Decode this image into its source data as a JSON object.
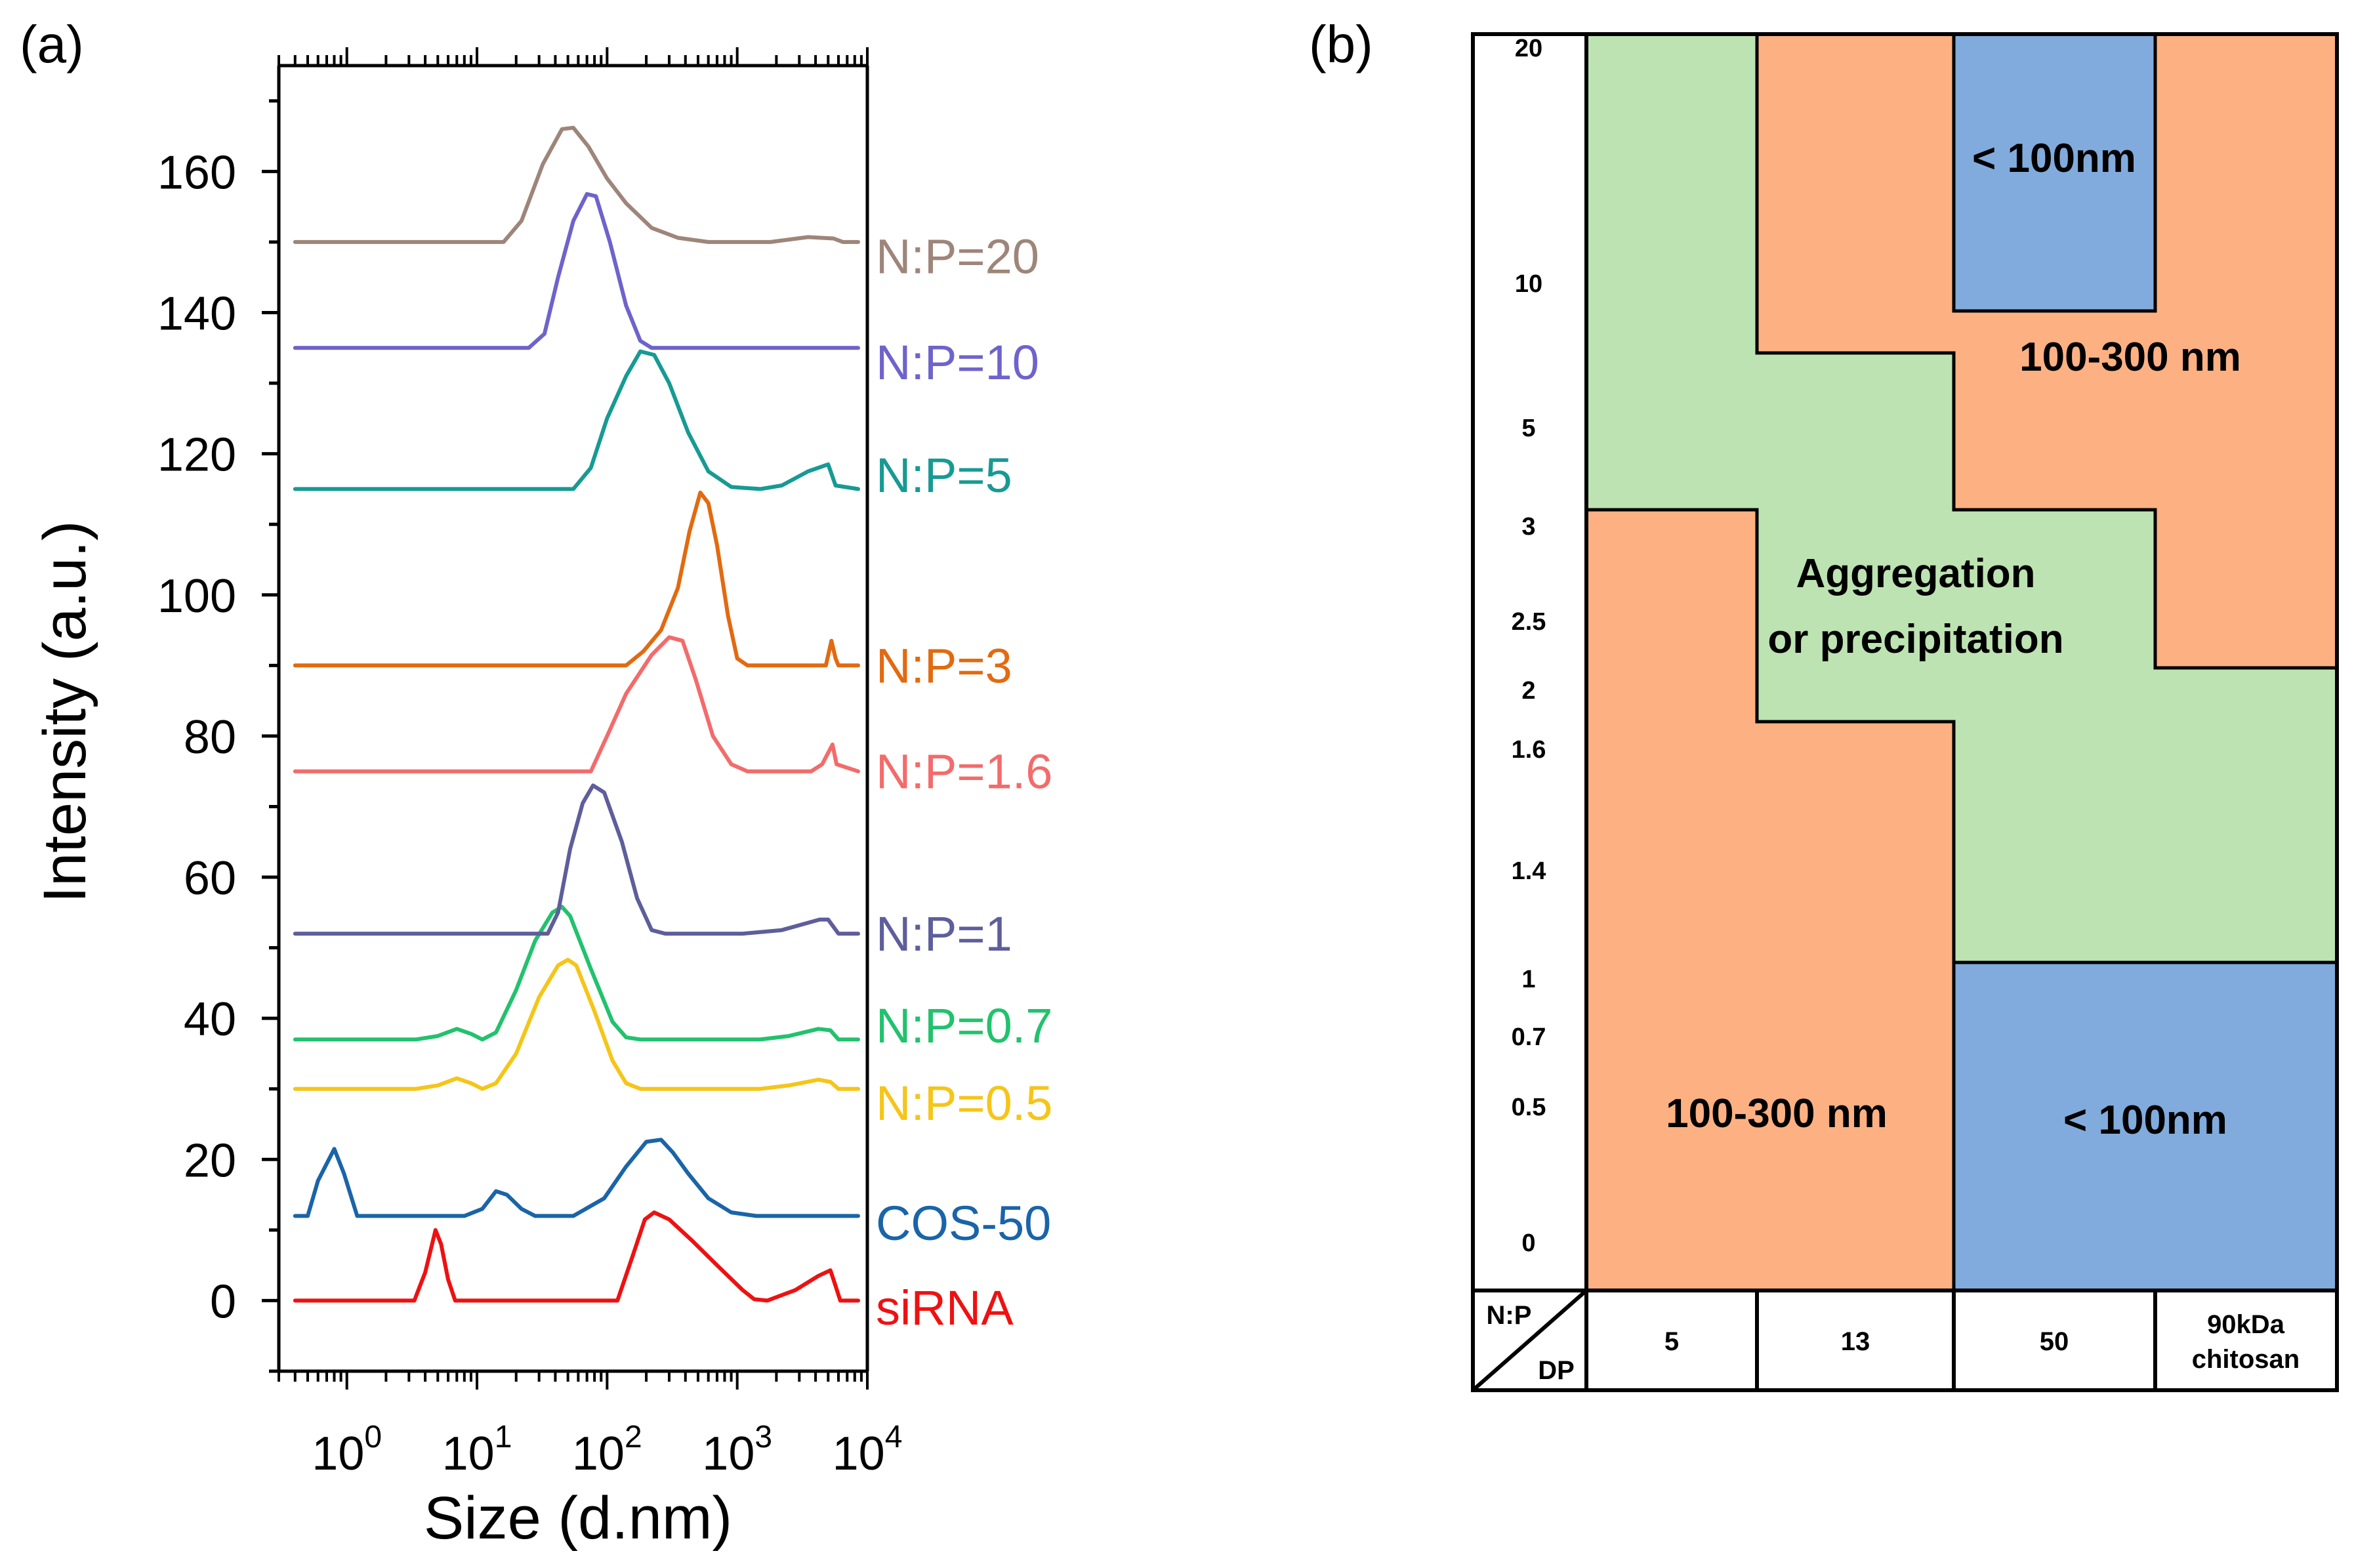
{
  "colors": {
    "green": "#bde3b2",
    "orange": "#fdb183",
    "blue": "#81abdc",
    "axis": "#000000"
  },
  "chart_data": [
    {
      "panel_label": "(a)",
      "type": "line",
      "xlabel": "Size (d.nm)",
      "ylabel": "Intensity (a.u.)",
      "xscale": "log",
      "xlim": [
        0.3,
        10000
      ],
      "ylim": [
        -10,
        175
      ],
      "x_ticks": [
        {
          "base": "10",
          "exp": "0",
          "value": 1
        },
        {
          "base": "10",
          "exp": "1",
          "value": 10
        },
        {
          "base": "10",
          "exp": "2",
          "value": 100
        },
        {
          "base": "10",
          "exp": "3",
          "value": 1000
        },
        {
          "base": "10",
          "exp": "4",
          "value": 10000
        }
      ],
      "y_ticks": [
        "0",
        "20",
        "40",
        "60",
        "80",
        "100",
        "120",
        "140",
        "160"
      ],
      "series": [
        {
          "name": "siRNA",
          "color": "#ee1111",
          "label_y": -1,
          "points": [
            [
              0.4,
              0
            ],
            [
              3.3,
              0
            ],
            [
              4.0,
              4
            ],
            [
              4.8,
              10
            ],
            [
              5.3,
              8
            ],
            [
              6.0,
              3
            ],
            [
              6.8,
              0
            ],
            [
              120,
              0
            ],
            [
              155,
              6
            ],
            [
              195,
              11.5
            ],
            [
              230,
              12.5
            ],
            [
              300,
              11.5
            ],
            [
              450,
              8.5
            ],
            [
              700,
              5
            ],
            [
              1100,
              1.5
            ],
            [
              1350,
              0.2
            ],
            [
              1700,
              0
            ],
            [
              2800,
              1.5
            ],
            [
              4200,
              3.5
            ],
            [
              5200,
              4.3
            ],
            [
              5600,
              2.5
            ],
            [
              6200,
              0
            ],
            [
              8500,
              0
            ]
          ]
        },
        {
          "name": "COS-50",
          "color": "#1a64a8",
          "label_y": 11,
          "points": [
            [
              0.4,
              12
            ],
            [
              0.5,
              12
            ],
            [
              0.6,
              17
            ],
            [
              0.8,
              21.5
            ],
            [
              0.95,
              18
            ],
            [
              1.2,
              12
            ],
            [
              8,
              12
            ],
            [
              11,
              13
            ],
            [
              14,
              15.5
            ],
            [
              17,
              15
            ],
            [
              22,
              13
            ],
            [
              28,
              12
            ],
            [
              55,
              12
            ],
            [
              95,
              14.5
            ],
            [
              140,
              19
            ],
            [
              200,
              22.5
            ],
            [
              260,
              22.8
            ],
            [
              320,
              21
            ],
            [
              420,
              18
            ],
            [
              600,
              14.5
            ],
            [
              900,
              12.5
            ],
            [
              1400,
              12
            ],
            [
              8500,
              12
            ]
          ]
        },
        {
          "name": "N:P=0.5",
          "color": "#f5c518",
          "label_y": 28,
          "points": [
            [
              0.4,
              30
            ],
            [
              3.4,
              30
            ],
            [
              5,
              30.5
            ],
            [
              7,
              31.5
            ],
            [
              9,
              30.8
            ],
            [
              11,
              30
            ],
            [
              14,
              30.8
            ],
            [
              20,
              35
            ],
            [
              30,
              43
            ],
            [
              42,
              47.5
            ],
            [
              50,
              48.3
            ],
            [
              58,
              47.5
            ],
            [
              80,
              41
            ],
            [
              110,
              34
            ],
            [
              140,
              30.8
            ],
            [
              180,
              30
            ],
            [
              1500,
              30
            ],
            [
              2500,
              30.5
            ],
            [
              4200,
              31.3
            ],
            [
              5200,
              31
            ],
            [
              6000,
              30
            ],
            [
              8500,
              30
            ]
          ]
        },
        {
          "name": "N:P=0.7",
          "color": "#22c26d",
          "label_y": 39,
          "points": [
            [
              0.4,
              37
            ],
            [
              3.4,
              37
            ],
            [
              5,
              37.5
            ],
            [
              7,
              38.5
            ],
            [
              9,
              37.8
            ],
            [
              11,
              37
            ],
            [
              14,
              38
            ],
            [
              20,
              44
            ],
            [
              28,
              51
            ],
            [
              38,
              55
            ],
            [
              45,
              55.8
            ],
            [
              52,
              54.5
            ],
            [
              75,
              47
            ],
            [
              110,
              39.5
            ],
            [
              140,
              37.3
            ],
            [
              180,
              37
            ],
            [
              1500,
              37
            ],
            [
              2500,
              37.5
            ],
            [
              4200,
              38.5
            ],
            [
              5200,
              38.3
            ],
            [
              6000,
              37
            ],
            [
              8500,
              37
            ]
          ]
        },
        {
          "name": "N:P=1",
          "color": "#5e5e9c",
          "label_y": 52,
          "points": [
            [
              0.4,
              52
            ],
            [
              35,
              52
            ],
            [
              42,
              55
            ],
            [
              52,
              64
            ],
            [
              65,
              70.5
            ],
            [
              78,
              73
            ],
            [
              95,
              72
            ],
            [
              130,
              65
            ],
            [
              170,
              57
            ],
            [
              220,
              52.5
            ],
            [
              280,
              52
            ],
            [
              1100,
              52
            ],
            [
              2200,
              52.5
            ],
            [
              4300,
              54
            ],
            [
              5000,
              54
            ],
            [
              6000,
              52
            ],
            [
              8500,
              52
            ]
          ]
        },
        {
          "name": "N:P=1.6",
          "color": "#f36b6b",
          "label_y": 75,
          "points": [
            [
              0.4,
              75
            ],
            [
              75,
              75
            ],
            [
              100,
              80
            ],
            [
              140,
              86
            ],
            [
              220,
              91.5
            ],
            [
              300,
              94
            ],
            [
              380,
              93.5
            ],
            [
              480,
              88
            ],
            [
              650,
              80
            ],
            [
              900,
              76
            ],
            [
              1200,
              75
            ],
            [
              3700,
              75
            ],
            [
              4500,
              76
            ],
            [
              5400,
              78.8
            ],
            [
              5800,
              76
            ],
            [
              8500,
              75
            ]
          ]
        },
        {
          "name": "N:P=3",
          "color": "#e26a10",
          "label_y": 90,
          "points": [
            [
              0.4,
              90
            ],
            [
              140,
              90
            ],
            [
              190,
              92
            ],
            [
              260,
              95
            ],
            [
              350,
              101
            ],
            [
              430,
              109
            ],
            [
              520,
              114.5
            ],
            [
              600,
              113
            ],
            [
              700,
              107
            ],
            [
              850,
              97
            ],
            [
              1000,
              91
            ],
            [
              1200,
              90
            ],
            [
              4800,
              90
            ],
            [
              5300,
              93.5
            ],
            [
              5700,
              91
            ],
            [
              6000,
              90
            ],
            [
              8500,
              90
            ]
          ]
        },
        {
          "name": "N:P=5",
          "color": "#179a94",
          "label_y": 117,
          "points": [
            [
              0.4,
              115
            ],
            [
              55,
              115
            ],
            [
              75,
              118
            ],
            [
              100,
              125
            ],
            [
              140,
              131
            ],
            [
              180,
              134.5
            ],
            [
              230,
              134
            ],
            [
              300,
              130
            ],
            [
              420,
              123
            ],
            [
              600,
              117.5
            ],
            [
              900,
              115.3
            ],
            [
              1500,
              115
            ],
            [
              2200,
              115.5
            ],
            [
              3500,
              117.5
            ],
            [
              5000,
              118.5
            ],
            [
              5700,
              115.5
            ],
            [
              8500,
              115
            ]
          ]
        },
        {
          "name": "N:P=10",
          "color": "#6e63cc",
          "label_y": 133,
          "points": [
            [
              0.4,
              135
            ],
            [
              25,
              135
            ],
            [
              33,
              137
            ],
            [
              42,
              145
            ],
            [
              55,
              153
            ],
            [
              70,
              156.8
            ],
            [
              82,
              156.5
            ],
            [
              105,
              150
            ],
            [
              140,
              141
            ],
            [
              180,
              136
            ],
            [
              220,
              135
            ],
            [
              8500,
              135
            ]
          ]
        },
        {
          "name": "N:P=20",
          "color": "#9e857a",
          "label_y": 148,
          "points": [
            [
              0.4,
              150
            ],
            [
              16,
              150
            ],
            [
              22,
              153
            ],
            [
              32,
              161
            ],
            [
              45,
              166
            ],
            [
              55,
              166.2
            ],
            [
              72,
              163.5
            ],
            [
              100,
              159
            ],
            [
              140,
              155.5
            ],
            [
              220,
              152
            ],
            [
              350,
              150.6
            ],
            [
              600,
              150
            ],
            [
              1800,
              150
            ],
            [
              3500,
              150.7
            ],
            [
              5500,
              150.5
            ],
            [
              6500,
              150
            ],
            [
              8500,
              150
            ]
          ]
        }
      ]
    },
    {
      "panel_label": "(b)",
      "type": "table",
      "corner_label": {
        "top": "N:P",
        "bottom": "DP"
      },
      "dp_columns": [
        "5",
        "13",
        "50",
        "90kDa chitosan"
      ],
      "np_levels": [
        "20",
        "10",
        "5",
        "3",
        "2.5",
        "2",
        "1.6",
        "1.4",
        "1",
        "0.7",
        "0.5",
        "0"
      ],
      "regions": [
        {
          "label": "Aggregation or precipitation",
          "lines": [
            "Aggregation",
            "or precipitation"
          ],
          "color": "green"
        },
        {
          "label": "100-300 nm",
          "lines": [
            "100-300 nm"
          ],
          "color": "orange",
          "position": "upper-right"
        },
        {
          "label": "< 100nm",
          "lines": [
            "< 100nm"
          ],
          "color": "blue",
          "position": "top, DP 50"
        },
        {
          "label": "100-300 nm",
          "lines": [
            "100-300 nm"
          ],
          "color": "orange",
          "position": "lower-left"
        },
        {
          "label": "< 100nm",
          "lines": [
            "< 100nm"
          ],
          "color": "blue",
          "position": "lower-right"
        }
      ]
    }
  ]
}
